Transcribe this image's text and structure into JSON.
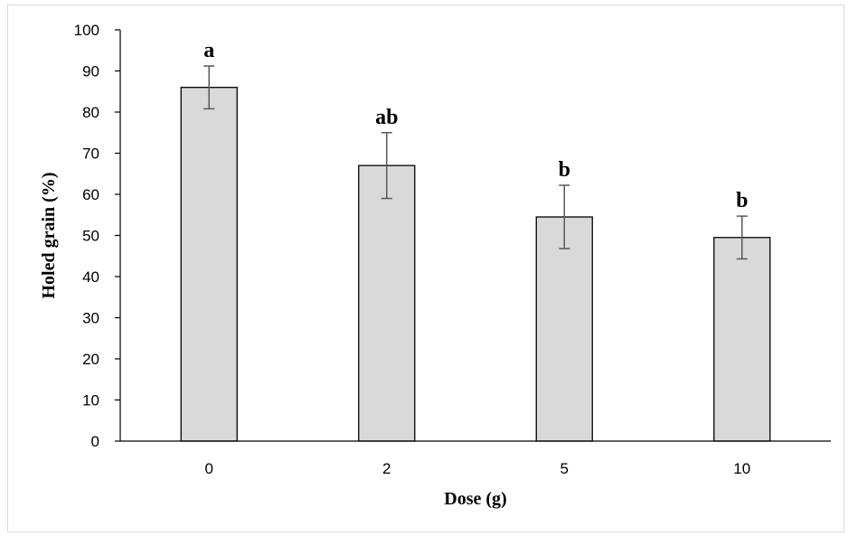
{
  "chart_data": {
    "type": "bar",
    "title": "",
    "xlabel": "Dose (g)",
    "ylabel": "Holed grain (%)",
    "categories": [
      "0",
      "2",
      "5",
      "10"
    ],
    "values": [
      86,
      67,
      54.5,
      49.5
    ],
    "errors": [
      5.2,
      8,
      7.7,
      5.2
    ],
    "significance_labels": [
      "a",
      "ab",
      "b",
      "b"
    ],
    "ylim": [
      0,
      100
    ],
    "yticks": [
      "0",
      "10",
      "20",
      "30",
      "40",
      "50",
      "60",
      "70",
      "80",
      "90",
      "100"
    ],
    "grid": false,
    "legend": "none",
    "bar_color": "#d9d9d9",
    "bar_edge_color": "#000000",
    "error_bar_color": "#595959"
  }
}
